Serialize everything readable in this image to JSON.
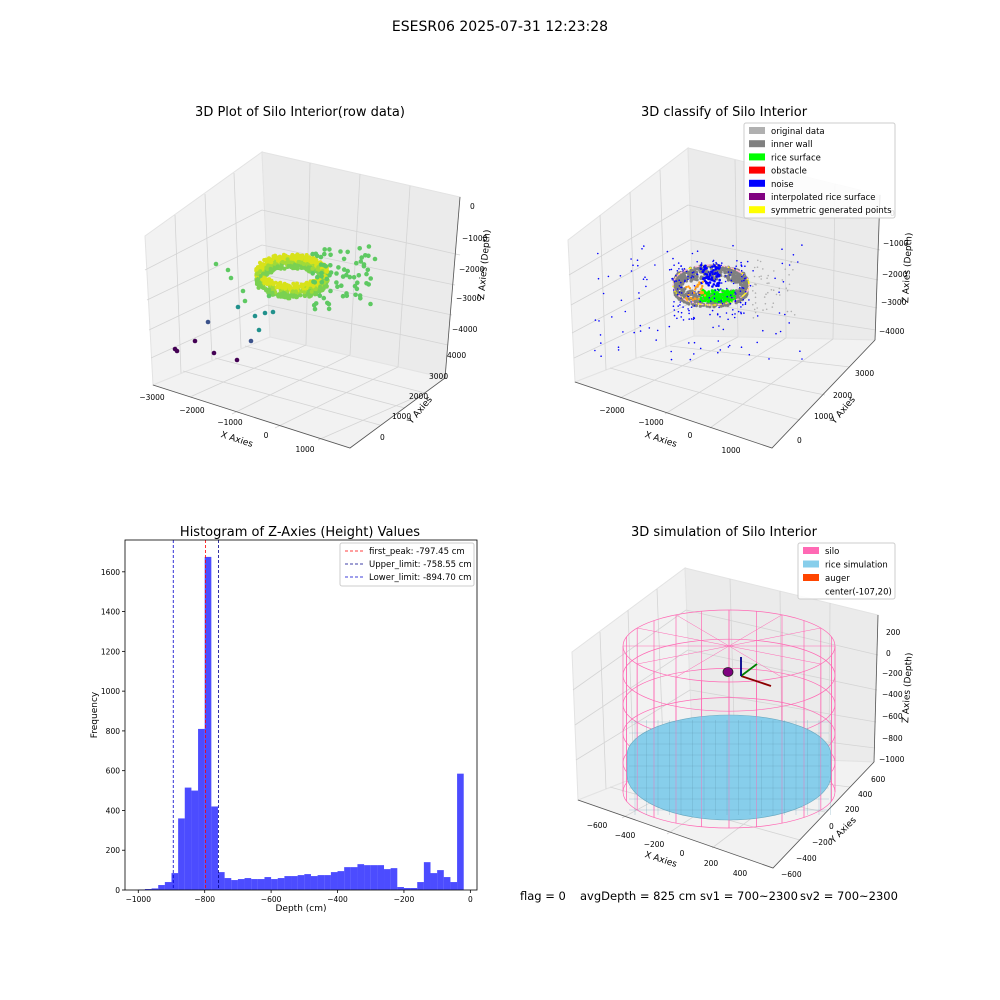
{
  "figure": {
    "suptitle": "ESESR06 2025-07-31 12:23:28",
    "status_line": {
      "flag": "flag = 0",
      "avg_depth": "avgDepth = 825 cm",
      "sv1": "sv1 = 700~2300",
      "sv2": "sv2 = 700~2300"
    }
  },
  "chart_data": [
    {
      "id": "raw",
      "type": "scatter",
      "title": "3D Plot of Silo Interior(row data)",
      "xlabel": "X Axies",
      "ylabel": "Y Axies",
      "zlabel": "Z Axies (Depth)",
      "xticks": [
        "−3000",
        "−2000",
        "−1000",
        "0",
        "1000"
      ],
      "yticks": [
        "0",
        "1000",
        "2000",
        "3000",
        "4000"
      ],
      "zticks": [
        "0",
        "−1000",
        "−2000",
        "−3000",
        "−4000"
      ],
      "colormap": [
        "#440154",
        "#3b528b",
        "#21918c",
        "#5ec962",
        "#fde725"
      ],
      "grid": true
    },
    {
      "id": "classify",
      "type": "scatter",
      "title": "3D classify of Silo Interior",
      "xlabel": "X Axies",
      "ylabel": "Y Axies",
      "zlabel": "Z Axies (Depth)",
      "xticks": [
        "−2000",
        "−1000",
        "0",
        "1000"
      ],
      "yticks": [
        "0",
        "1000",
        "2000",
        "3000"
      ],
      "zticks": [
        "0",
        "−1000",
        "−2000",
        "−3000",
        "−4000"
      ],
      "legend_position": "top-right",
      "legend": [
        {
          "label": "original data",
          "color": "#b0b0b0"
        },
        {
          "label": "inner wall",
          "color": "#808080"
        },
        {
          "label": "rice surface",
          "color": "#00ff00"
        },
        {
          "label": "obstacle",
          "color": "#ff0000"
        },
        {
          "label": "noise",
          "color": "#0000ff"
        },
        {
          "label": "interpolated rice surface",
          "color": "#800080"
        },
        {
          "label": "symmetric generated points",
          "color": "#ffff00"
        }
      ],
      "grid": true
    },
    {
      "id": "histogram",
      "type": "bar",
      "title": "Histogram of Z-Axies (Height) Values",
      "xlabel": "Depth (cm)",
      "ylabel": "Frequency",
      "xlim": [
        -1040,
        20
      ],
      "ylim": [
        0,
        1760
      ],
      "xticks": [
        -1000,
        -800,
        -600,
        -400,
        -200,
        0
      ],
      "yticks": [
        0,
        200,
        400,
        600,
        800,
        1000,
        1200,
        1400,
        1600
      ],
      "bar_color": "#0000ff",
      "bin_width": 20,
      "bin_start": -1000,
      "values": [
        2,
        5,
        8,
        25,
        40,
        85,
        360,
        515,
        500,
        810,
        1675,
        420,
        90,
        60,
        50,
        55,
        60,
        55,
        55,
        65,
        55,
        60,
        70,
        70,
        75,
        80,
        70,
        75,
        75,
        90,
        95,
        115,
        115,
        130,
        125,
        125,
        125,
        105,
        110,
        15,
        10,
        10,
        40,
        140,
        85,
        100,
        65,
        40,
        585
      ],
      "lines": [
        {
          "label": "first_peak: -797.45 cm",
          "x": -797.45,
          "color": "#ff0000"
        },
        {
          "label": "Upper_limit: -758.55 cm",
          "x": -758.55,
          "color": "#00008b"
        },
        {
          "label": "Lower_limit: -894.70 cm",
          "x": -894.7,
          "color": "#0000cd"
        }
      ],
      "legend_position": "top-right",
      "grid": false
    },
    {
      "id": "simulation",
      "type": "scatter",
      "title": "3D simulation of Silo Interior",
      "xlabel": "X Axies",
      "ylabel": "Y Axies",
      "zlabel": "Z Axies (Depth)",
      "xticks": [
        "−600",
        "−400",
        "−200",
        "0",
        "200",
        "400"
      ],
      "yticks": [
        "600",
        "400",
        "200",
        "0",
        "−200",
        "−400",
        "−600"
      ],
      "zticks": [
        "200",
        "0",
        "−200",
        "−400",
        "−600",
        "−800",
        "−1000"
      ],
      "legend_position": "top-right",
      "legend": [
        {
          "label": "silo",
          "color": "#ff69b4"
        },
        {
          "label": "rice simulation",
          "color": "#87ceeb"
        },
        {
          "label": "auger",
          "color": "#ff4500"
        },
        {
          "label": "center(-107,20)",
          "color": ""
        }
      ],
      "grid": true
    }
  ]
}
